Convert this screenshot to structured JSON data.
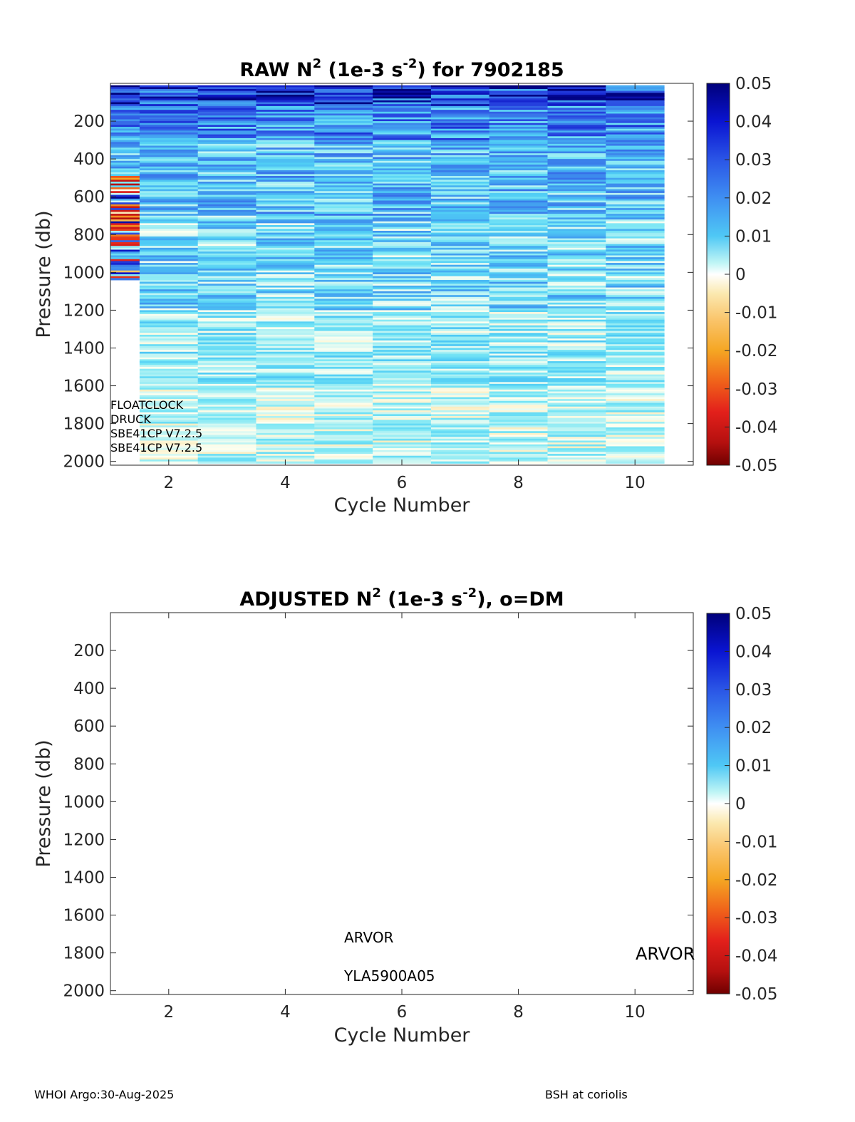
{
  "chart_data": [
    {
      "type": "heatmap",
      "title": "RAW N2 (1e-3 s-2) for 7902185",
      "title_parts": {
        "pre": "RAW N",
        "sup1": "2",
        "mid": " (1e-3 s",
        "sup2": "-2",
        "post": ") for 7902185"
      },
      "xlabel": "Cycle Number",
      "ylabel": "Pressure (db)",
      "xlim": [
        1,
        11
      ],
      "ylim": [
        2020,
        0
      ],
      "y_reversed": true,
      "x_ticks": [
        "2",
        "4",
        "6",
        "8",
        "10"
      ],
      "y_ticks": [
        "200",
        "400",
        "600",
        "800",
        "1000",
        "1200",
        "1400",
        "1600",
        "1800",
        "2000"
      ],
      "colorbar": {
        "colormap": "jet-style diverging (dark red to white-cream to dark blue)",
        "range": [
          -0.05,
          0.05
        ],
        "ticks": [
          "0.05",
          "0.04",
          "0.03",
          "0.02",
          "0.01",
          "0",
          "-0.01",
          "-0.02",
          "-0.03",
          "-0.04",
          "-0.05"
        ]
      },
      "cycles": [
        1,
        2,
        3,
        4,
        5,
        6,
        7,
        8,
        9,
        10
      ],
      "cycle_max_pressure": [
        1040,
        2010,
        2010,
        2010,
        2010,
        2010,
        2010,
        2010,
        2010,
        2010
      ],
      "annotations": [
        "FLOATCLOCK",
        "DRUCK",
        "SBE41CP V7.2.5",
        "SBE41CP V7.2.5"
      ]
    },
    {
      "type": "heatmap",
      "title": "ADJUSTED N2 (1e-3 s-2), o=DM",
      "title_parts": {
        "pre": "ADJUSTED N",
        "sup1": "2",
        "mid": " (1e-3 s",
        "sup2": "-2",
        "post": "), o=DM"
      },
      "xlabel": "Cycle Number",
      "ylabel": "Pressure (db)",
      "xlim": [
        1,
        11
      ],
      "ylim": [
        2020,
        0
      ],
      "y_reversed": true,
      "x_ticks": [
        "2",
        "4",
        "6",
        "8",
        "10"
      ],
      "y_ticks": [
        "200",
        "400",
        "600",
        "800",
        "1000",
        "1200",
        "1400",
        "1600",
        "1800",
        "2000"
      ],
      "colorbar": {
        "colormap": "jet-style diverging (dark red to white-cream to dark blue)",
        "range": [
          -0.05,
          0.05
        ],
        "ticks": [
          "0.05",
          "0.04",
          "0.03",
          "0.02",
          "0.01",
          "0",
          "-0.01",
          "-0.02",
          "-0.03",
          "-0.04",
          "-0.05"
        ]
      },
      "cycles": [],
      "annotations": [
        "ARVOR",
        "YLA5900A05",
        "ARVOR"
      ]
    }
  ],
  "footer": {
    "left": "WHOI Argo:30-Aug-2025",
    "right": "BSH at coriolis"
  }
}
